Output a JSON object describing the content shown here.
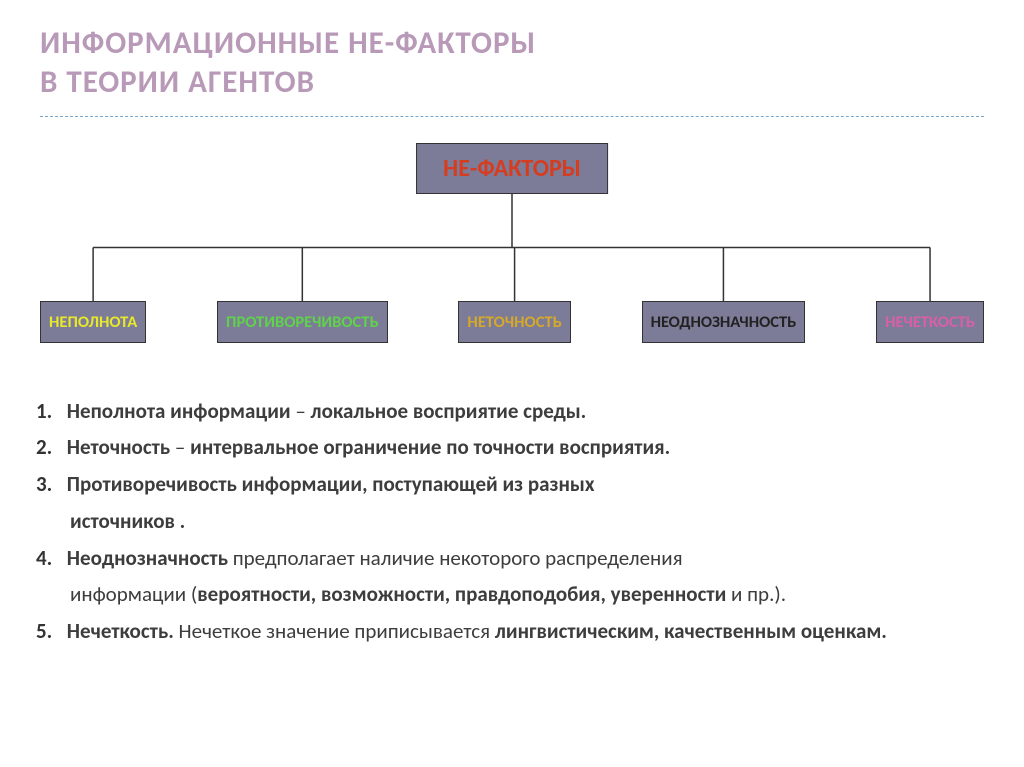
{
  "title": {
    "line1": "ИНФОРМАЦИОННЫЕ НЕ-ФАКТОРЫ",
    "line2": "В ТЕОРИИ АГЕНТОВ",
    "color": "#b89ab8",
    "fontsize": 31
  },
  "divider_color": "#7aa7c9",
  "tree": {
    "root": {
      "label": "НЕ-ФАКТОРЫ",
      "bg": "#7c7c98",
      "color": "#d63c1f",
      "fontsize": 24
    },
    "connector_color": "#333333",
    "children": [
      {
        "label": "НЕПОЛНОТА",
        "bg": "#7c7c98",
        "color": "#e8e82b"
      },
      {
        "label": "ПРОТИВОРЕЧИВОСТЬ",
        "bg": "#7c7c98",
        "color": "#5fd24a"
      },
      {
        "label": "НЕТОЧНОСТЬ",
        "bg": "#7c7c98",
        "color": "#d6a82a"
      },
      {
        "label": "НЕОДНОЗНАЧНОСТЬ",
        "bg": "#7c7c98",
        "color": "#222222"
      },
      {
        "label": "НЕЧЕТКОСТЬ",
        "bg": "#7c7c98",
        "color": "#d85fa8"
      }
    ]
  },
  "list": {
    "color": "#3d3d3d",
    "fontsize": 21,
    "items": [
      {
        "n": "1.",
        "html": "<span class='b'>Неполнота  информации</span> – <span class='b'>локальное восприятие среды.</span>"
      },
      {
        "n": "2.",
        "html": "<span class='b'>Неточность</span> – <span class='b'>интервальное ограничение по точности восприятия.</span>"
      },
      {
        "n": "3.",
        "html": "<span class='b'>Противоречивость информации, поступающей из разных</span>",
        "cont": "<span class='b'>источников .</span>"
      },
      {
        "n": "4.",
        "html": "<span class='b'>Неоднозначность</span> предполагает наличие некоторого распределения",
        "cont": "информации  (<span class='b'>вероятности,   возможности,  правдоподобия,  уверенности</span> и пр.)."
      },
      {
        "n": "5.",
        "html": "<span class='b'>Нечеткость.</span>  Нечеткое значение приписывается <span class='b'>лингвистическим, качественным оценкам.</span>"
      }
    ]
  }
}
